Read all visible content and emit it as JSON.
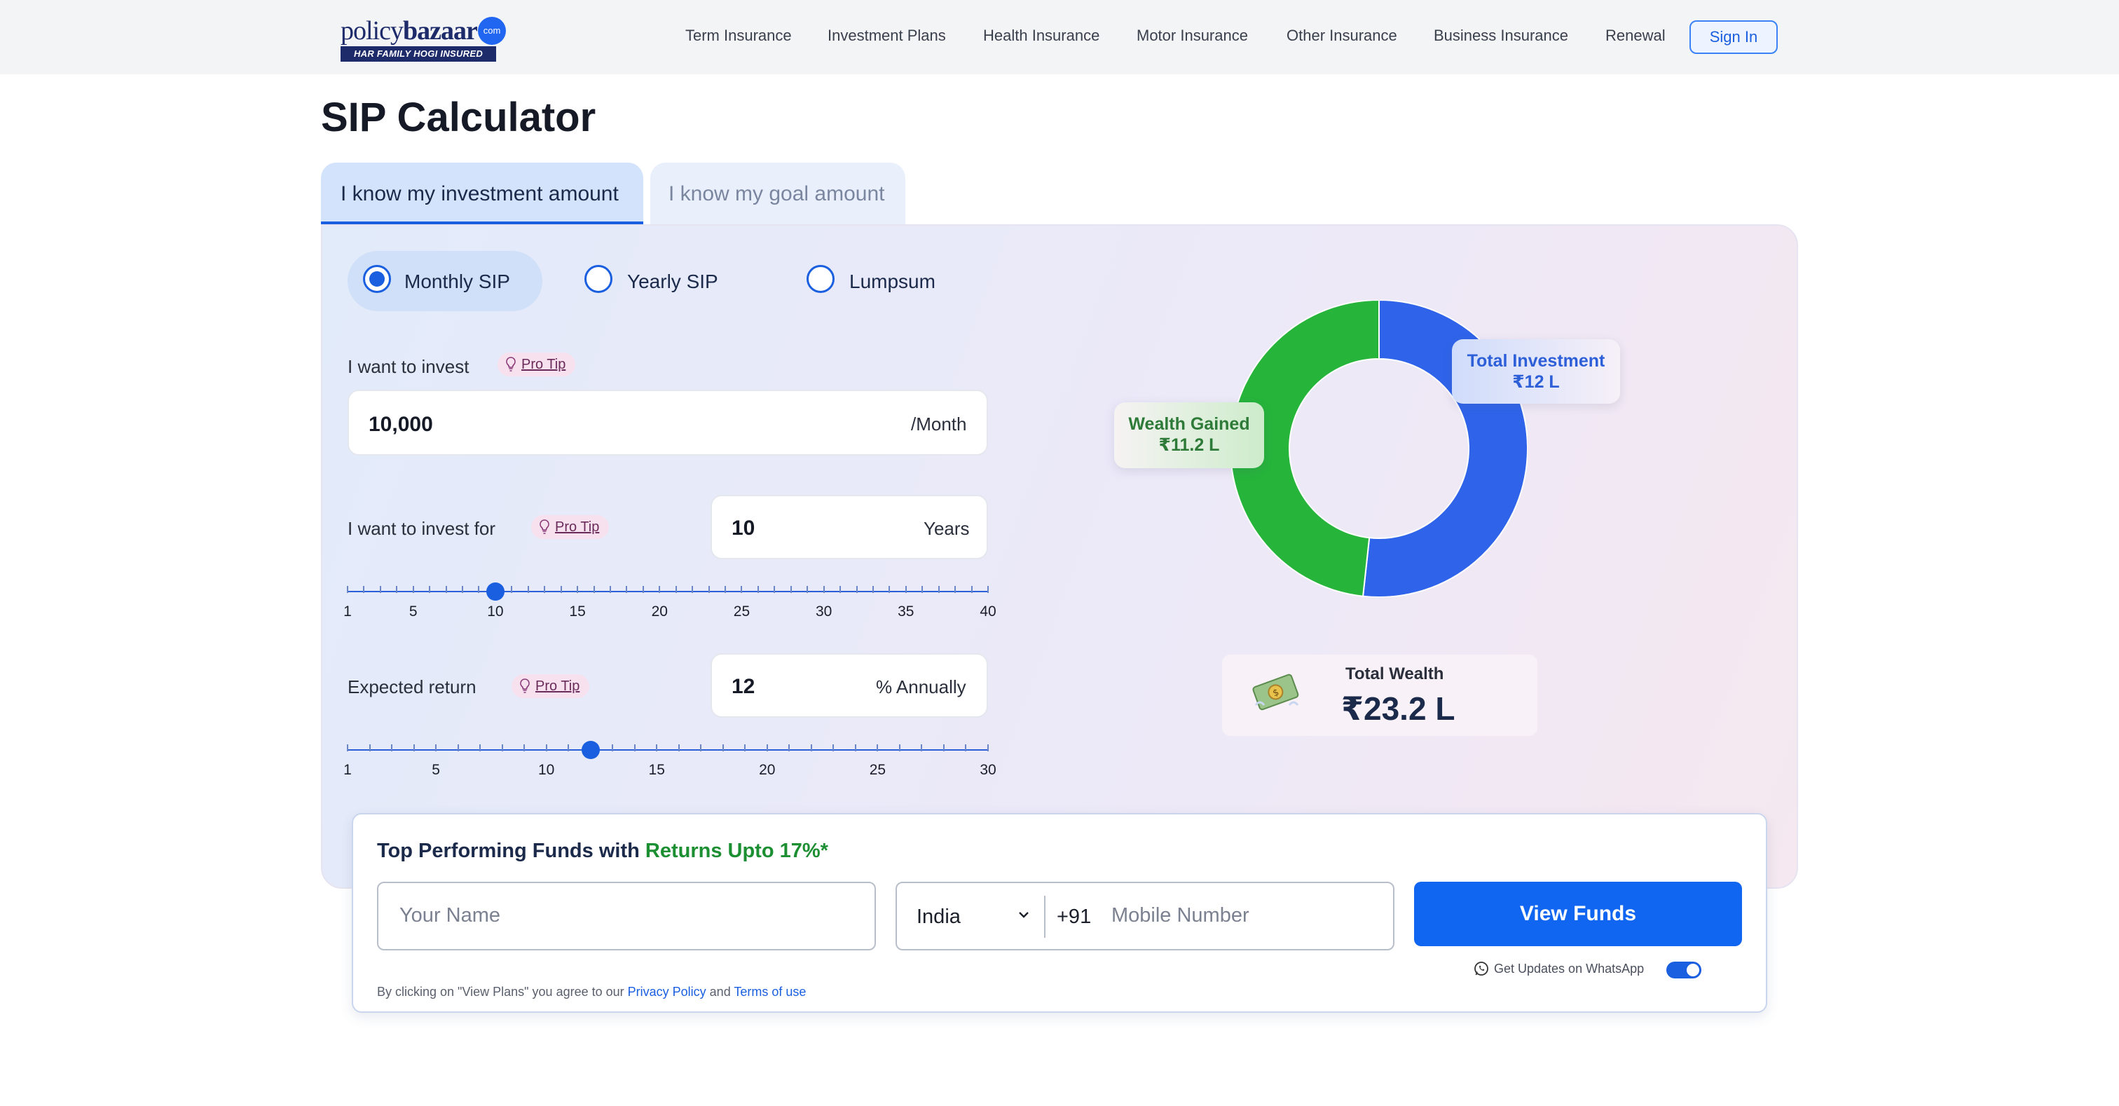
{
  "header": {
    "logo_word_light": "policy",
    "logo_word_bold": "bazaar",
    "logo_dot": "com",
    "logo_tagline": "HAR FAMILY HOGI INSURED",
    "nav": [
      "Term Insurance",
      "Investment Plans",
      "Health Insurance",
      "Motor Insurance",
      "Other Insurance",
      "Business Insurance",
      "Renewal"
    ],
    "sign_in": "Sign In"
  },
  "page_title": "SIP Calculator",
  "tabs": [
    {
      "label": "I know my investment amount",
      "active": true
    },
    {
      "label": "I know my goal amount",
      "active": false
    }
  ],
  "sip_types": [
    {
      "label": "Monthly SIP",
      "selected": true
    },
    {
      "label": "Yearly SIP",
      "selected": false
    },
    {
      "label": "Lumpsum",
      "selected": false
    }
  ],
  "pro_tip": "Pro Tip",
  "invest_amount": {
    "label": "I want to invest",
    "value": "10,000",
    "unit": "/Month"
  },
  "invest_period": {
    "label": "I want to invest for",
    "value": "10",
    "unit": "Years",
    "slider": {
      "min": 1,
      "max": 40,
      "value": 10,
      "ticks": [
        "1",
        "5",
        "10",
        "15",
        "20",
        "25",
        "30",
        "35",
        "40"
      ]
    }
  },
  "expected_return": {
    "label": "Expected return",
    "value": "12",
    "unit": "% Annually",
    "slider": {
      "min": 1,
      "max": 30,
      "value": 12,
      "ticks": [
        "1",
        "5",
        "10",
        "15",
        "20",
        "25",
        "30"
      ]
    }
  },
  "chart_data": {
    "type": "pie",
    "style": "donut",
    "slices": [
      {
        "name": "Total Investment",
        "label": "₹12 L",
        "value": 12,
        "color": "#2f64ea"
      },
      {
        "name": "Wealth Gained",
        "label": "₹11.2 L",
        "value": 11.2,
        "color": "#26b43b"
      }
    ]
  },
  "total_wealth": {
    "label": "Total Wealth",
    "value": "₹23.2 L",
    "icon": "money-bills-icon"
  },
  "lead_form": {
    "title_prefix": "Top Performing Funds with ",
    "title_highlight": "Returns Upto 17%*",
    "name_placeholder": "Your Name",
    "country": "India",
    "country_code": "+91",
    "mobile_placeholder": "Mobile Number",
    "cta": "View Funds",
    "whatsapp_label": "Get Updates on WhatsApp",
    "whatsapp_enabled": true,
    "disclaimer_prefix": "By clicking on \"View Plans\" you agree to our ",
    "privacy_link": "Privacy Policy",
    "disclaimer_and": " and ",
    "terms_link": "Terms of use"
  },
  "colors": {
    "accent": "#1a5fe0",
    "investment": "#2f64ea",
    "wealth": "#26b43b",
    "highlight_green": "#1c8f33"
  }
}
